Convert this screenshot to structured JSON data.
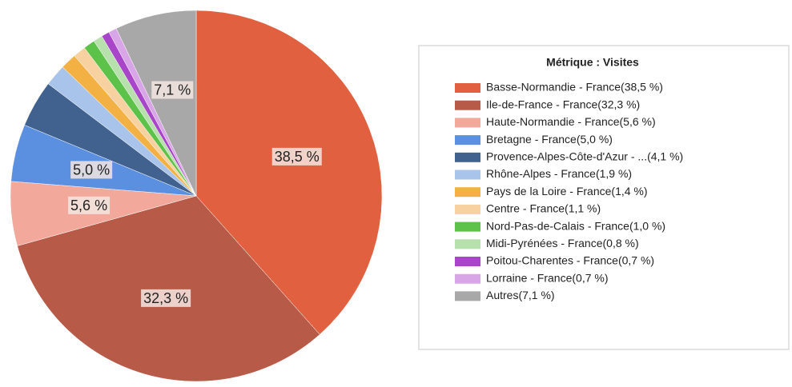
{
  "chart_data": {
    "type": "pie",
    "legend_title": "Métrique :  Visites",
    "categories": [
      "Basse-Normandie - France(38,5 %)",
      "Ile-de-France - France(32,3 %)",
      "Haute-Normandie - France(5,6 %)",
      "Bretagne - France(5,0 %)",
      "Provence-Alpes-Côte-d'Azur - ...(4,1 %)",
      "Rhône-Alpes - France(1,9 %)",
      "Pays de la Loire - France(1,4 %)",
      "Centre - France(1,1 %)",
      "Nord-Pas-de-Calais - France(1,0 %)",
      "Midi-Pyrénées - France(0,8 %)",
      "Poitou-Charentes - France(0,7 %)",
      "Lorraine - France(0,7 %)",
      "Autres(7,1 %)"
    ],
    "values": [
      38.5,
      32.3,
      5.6,
      5.0,
      4.1,
      1.9,
      1.4,
      1.1,
      1.0,
      0.8,
      0.7,
      0.7,
      7.1
    ],
    "value_labels": [
      "38,5 %",
      "32,3 %",
      "5,6 %",
      "5,0 %",
      null,
      null,
      null,
      null,
      null,
      null,
      null,
      null,
      "7,1 %"
    ],
    "colors": [
      "#e0603f",
      "#b85a48",
      "#f2a89a",
      "#5b8fe0",
      "#41628f",
      "#a9c4ea",
      "#f4b143",
      "#f7d2a0",
      "#5dc24a",
      "#b8e0ad",
      "#a845c8",
      "#d8a6e6",
      "#a8a8a8"
    ],
    "legend": "right"
  }
}
